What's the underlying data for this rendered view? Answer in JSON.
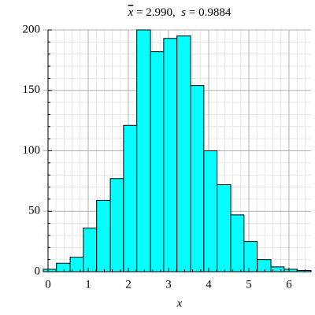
{
  "chart_data": {
    "type": "histogram",
    "title": [
      "x",
      " = 2.990,  ",
      "s",
      " = 0.9884"
    ],
    "xlabel": "x",
    "bins": [
      -0.12,
      0.21,
      0.55,
      0.88,
      1.21,
      1.55,
      1.88,
      2.21,
      2.55,
      2.88,
      3.21,
      3.55,
      3.88,
      4.21,
      4.55,
      4.88,
      5.21,
      5.55,
      5.88,
      6.21,
      6.55
    ],
    "values": [
      2,
      7,
      12,
      36,
      59,
      77,
      121,
      200,
      182,
      193,
      195,
      154,
      100,
      72,
      47,
      25,
      10,
      4,
      2,
      1
    ],
    "color": "#00ffff",
    "xlim": [
      -0.12,
      6.55
    ],
    "xticks": [
      0,
      1,
      2,
      3,
      4,
      5,
      6
    ],
    "ylim": [
      0,
      200
    ],
    "yticks": [
      0,
      50,
      100,
      150,
      200
    ],
    "x_minor_ticks": [
      0.2,
      0.4,
      0.6,
      0.8,
      1.2,
      1.4,
      1.6,
      1.8,
      2.2,
      2.4,
      2.6,
      2.8,
      3.2,
      3.4,
      3.6,
      3.8,
      4.2,
      4.4,
      4.6,
      4.8,
      5.2,
      5.4,
      5.6,
      5.8,
      6.2,
      6.4
    ],
    "y_minor_ticks": [
      10,
      20,
      30,
      40,
      60,
      70,
      80,
      90,
      110,
      120,
      130,
      140,
      160,
      170,
      180,
      190
    ],
    "grid": true
  }
}
